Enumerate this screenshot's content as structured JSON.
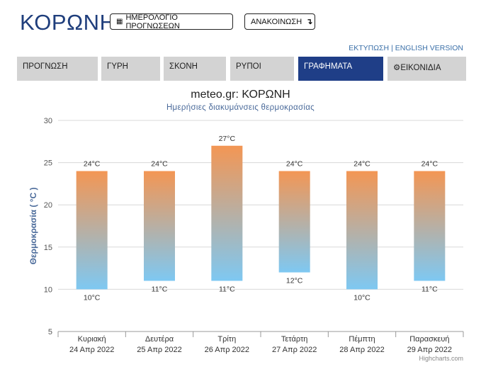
{
  "header": {
    "site_title": "ΚΟΡΩΝΗ",
    "calendar_button": "ΗΜΕΡΟΛΟΓΙΟ ΠΡΟΓΝΩΣΕΩΝ",
    "announcement_button": "ΑΝΑΚΟΙΝΩΣΗ",
    "print_link": "ΕΚΤΥΠΩΣΗ",
    "separator": "|",
    "english_link": "ENGLISH VERSION"
  },
  "tabs": [
    {
      "label": "ΠΡΟΓΝΩΣΗ",
      "active": false
    },
    {
      "label": "ΓΥΡΗ",
      "active": false
    },
    {
      "label": "ΣΚΟΝΗ",
      "active": false
    },
    {
      "label": "ΡΥΠΟΙ",
      "active": false
    },
    {
      "label": "ΓΡΑΦΗΜΑΤΑ",
      "active": true
    },
    {
      "label": "ΕΙΚΟΝΙΔΙΑ",
      "active": false,
      "icon": "gear-icon"
    }
  ],
  "chart_data": {
    "type": "bar",
    "title": "meteo.gr: ΚΟΡΩΝΗ",
    "subtitle": "Ημερήσιες διακυμάνσεις θερμοκρασίας",
    "ylabel": "Θερμοκρασία ( °C )",
    "ylim": [
      5,
      30
    ],
    "yticks": [
      5,
      10,
      15,
      20,
      25,
      30
    ],
    "grid": true,
    "categories": [
      {
        "day": "Κυριακή",
        "date": "24 Απρ 2022"
      },
      {
        "day": "Δευτέρα",
        "date": "25 Απρ 2022"
      },
      {
        "day": "Τρίτη",
        "date": "26 Απρ 2022"
      },
      {
        "day": "Τετάρτη",
        "date": "27 Απρ 2022"
      },
      {
        "day": "Πέμπτη",
        "date": "28 Απρ 2022"
      },
      {
        "day": "Παρασκευή",
        "date": "29 Απρ 2022"
      }
    ],
    "series": [
      {
        "low": 10,
        "high": 24
      },
      {
        "low": 11,
        "high": 24
      },
      {
        "low": 11,
        "high": 27
      },
      {
        "low": 12,
        "high": 24
      },
      {
        "low": 10,
        "high": 24
      },
      {
        "low": 11,
        "high": 24
      }
    ],
    "unit": "°C",
    "colors": {
      "high": "#f39654",
      "low": "#7ec8f2",
      "grid": "#d8d8d8",
      "axis": "#555555",
      "ylabel": "#4a6a9a"
    }
  },
  "credits": "Highcharts.com"
}
